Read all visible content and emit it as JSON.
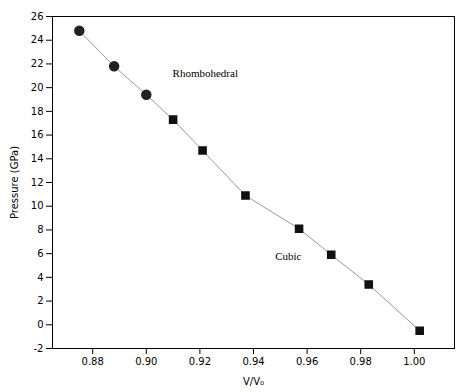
{
  "chart_data": {
    "type": "scatter",
    "xlabel": "V/V₀",
    "ylabel": "Pressure (GPa)",
    "xlim": [
      0.865,
      1.015
    ],
    "ylim": [
      -2,
      26
    ],
    "xticks": [
      0.88,
      {
        "value": 0.9,
        "label": "0.90"
      },
      0.92,
      0.94,
      0.96,
      0.98,
      {
        "value": 1,
        "label": "1.00"
      }
    ],
    "yticks": [
      -2,
      0,
      2,
      4,
      6,
      8,
      10,
      12,
      14,
      16,
      18,
      20,
      22,
      24,
      26
    ],
    "grid": false,
    "series": [
      {
        "type": "line",
        "color": "#999999",
        "x": [
          0.875,
          0.888,
          0.9,
          0.91,
          0.921,
          0.937,
          0.957,
          0.969,
          0.983,
          1.002
        ],
        "values": [
          24.8,
          21.8,
          19.4,
          17.3,
          14.7,
          10.9,
          8.1,
          5.9,
          3.4,
          -0.5
        ]
      },
      {
        "type": "scatter",
        "marker": "circle",
        "color": "#222222",
        "x": [
          0.875,
          0.888,
          0.9
        ],
        "values": [
          24.8,
          21.8,
          19.4
        ]
      },
      {
        "type": "scatter",
        "marker": "square",
        "color": "#111111",
        "x": [
          0.91,
          0.921,
          0.937,
          0.957,
          0.969,
          0.983,
          1.002
        ],
        "values": [
          17.3,
          14.7,
          10.9,
          8.1,
          5.9,
          3.4,
          -0.5
        ]
      }
    ],
    "annotations": [
      {
        "text": "Rhombohedral",
        "x": 0.922,
        "y": 21.2
      },
      {
        "text": "Cubic",
        "x": 0.953,
        "y": 5.8
      }
    ]
  }
}
